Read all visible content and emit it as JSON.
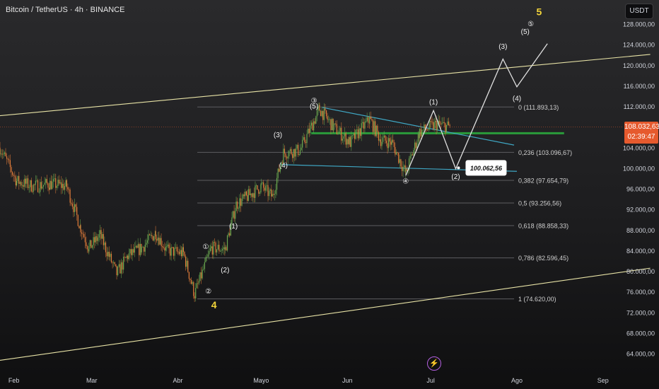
{
  "header": {
    "symbol_title": "Bitcoin / TetherUS · 4h · BINANCE",
    "currency_button": "USDT"
  },
  "price_tag": {
    "price": "108.032,63",
    "countdown": "02:39:47"
  },
  "colors": {
    "background": "#1e1e1f",
    "fib_line": "#5d5d60",
    "channel": "#e8e3a6",
    "triangle": "#3fa7c4",
    "support": "#2a9b3a",
    "price_tag": "#e65a2e",
    "wave_yellow": "#f2d43a",
    "path": "#e0e0e0",
    "candle_up": "#6aa84f",
    "candle_down": "#e07b39"
  },
  "chart_data": {
    "type": "candlestick",
    "title": "Bitcoin / TetherUS · 4h · BINANCE",
    "x_tick_labels": [
      "Feb",
      "Mar",
      "Abr",
      "Mayo",
      "Jun",
      "Jul",
      "Ago",
      "Sep"
    ],
    "y_tick_labels": [
      "128.000,00",
      "124.000,00",
      "120.000,00",
      "116.000,00",
      "112.000,00",
      "104.000,00",
      "100.000,00",
      "96.000,00",
      "92.000,00",
      "88.000,00",
      "84.000,00",
      "80.000,00",
      "76.000,00",
      "72.000,00",
      "68.000,00",
      "64.000,00"
    ],
    "y_tick_values": [
      128000,
      124000,
      120000,
      116000,
      112000,
      104000,
      100000,
      96000,
      92000,
      88000,
      84000,
      80000,
      76000,
      72000,
      68000,
      64000
    ],
    "ylim": [
      62000,
      131000
    ],
    "last_price": 108032.63,
    "price_path": [
      [
        "2025-01-27",
        104000
      ],
      [
        "2025-02-02",
        97500
      ],
      [
        "2025-02-08",
        96500
      ],
      [
        "2025-02-14",
        97000
      ],
      [
        "2025-02-20",
        96500
      ],
      [
        "2025-02-25",
        88500
      ],
      [
        "2025-02-28",
        84500
      ],
      [
        "2025-03-04",
        87000
      ],
      [
        "2025-03-10",
        79500
      ],
      [
        "2025-03-14",
        83000
      ],
      [
        "2025-03-19",
        84500
      ],
      [
        "2025-03-24",
        87500
      ],
      [
        "2025-03-28",
        84000
      ],
      [
        "2025-04-03",
        83500
      ],
      [
        "2025-04-07",
        75500
      ],
      [
        "2025-04-09",
        78500
      ],
      [
        "2025-04-13",
        84500
      ],
      [
        "2025-04-18",
        84300
      ],
      [
        "2025-04-22",
        93000
      ],
      [
        "2025-04-26",
        94500
      ],
      [
        "2025-05-01",
        96500
      ],
      [
        "2025-05-05",
        94500
      ],
      [
        "2025-05-09",
        103000
      ],
      [
        "2025-05-15",
        103500
      ],
      [
        "2025-05-22",
        111500
      ],
      [
        "2025-05-27",
        108000
      ],
      [
        "2025-06-02",
        105000
      ],
      [
        "2025-06-09",
        109500
      ],
      [
        "2025-06-13",
        105500
      ],
      [
        "2025-06-17",
        105000
      ],
      [
        "2025-06-22",
        99000
      ],
      [
        "2025-06-27",
        107000
      ],
      [
        "2025-07-03",
        108500
      ],
      [
        "2025-07-08",
        108032
      ]
    ],
    "fibonacci_levels": [
      {
        "ratio": 0,
        "price": 111893.13,
        "label": "0 (111.893,13)"
      },
      {
        "ratio": 0.236,
        "price": 103096.67,
        "label": "0,236 (103.096,67)"
      },
      {
        "ratio": 0.382,
        "price": 97654.79,
        "label": "0,382 (97.654,79)"
      },
      {
        "ratio": 0.5,
        "price": 93256.56,
        "label": "0,5 (93.256,56)"
      },
      {
        "ratio": 0.618,
        "price": 88858.33,
        "label": "0,618 (88.858,33)"
      },
      {
        "ratio": 0.786,
        "price": 82596.45,
        "label": "0,786 (82.596,45)"
      },
      {
        "ratio": 1,
        "price": 74620.0,
        "label": "1 (74.620,00)"
      }
    ],
    "target_callout": {
      "price": 100062.56,
      "label": "100.062,56"
    },
    "support_zone_price": 106800,
    "channel": {
      "upper": [
        [
          "2025-01-27",
          110200
        ],
        [
          "2025-09-18",
          122100
        ]
      ],
      "lower": [
        [
          "2025-01-27",
          62700
        ],
        [
          "2025-09-18",
          80600
        ]
      ]
    },
    "triangle": {
      "upper": [
        [
          "2025-05-23",
          111800
        ],
        [
          "2025-07-31",
          104500
        ]
      ],
      "lower": [
        [
          "2025-05-08",
          100700
        ],
        [
          "2025-08-01",
          99400
        ]
      ]
    },
    "projection_path": [
      [
        "2025-06-22",
        98600
      ],
      [
        "2025-07-02",
        111200
      ],
      [
        "2025-07-10",
        99900
      ],
      [
        "2025-07-27",
        121200
      ],
      [
        "2025-08-01",
        115800
      ],
      [
        "2025-08-12",
        124200
      ]
    ],
    "wave_labels": [
      {
        "text": "①",
        "date": "2025-04-11",
        "price": 84300
      },
      {
        "text": "②",
        "date": "2025-04-12",
        "price": 75700
      },
      {
        "text": "(1)",
        "date": "2025-04-21",
        "price": 88300
      },
      {
        "text": "(2)",
        "date": "2025-04-18",
        "price": 79800
      },
      {
        "text": "(3)",
        "date": "2025-05-07",
        "price": 106000
      },
      {
        "text": "(4)",
        "date": "2025-05-09",
        "price": 100100
      },
      {
        "text": "③",
        "date": "2025-05-20",
        "price": 112700
      },
      {
        "text": "(5)",
        "date": "2025-05-20",
        "price": 111600
      },
      {
        "text": "④",
        "date": "2025-06-22",
        "price": 97000
      },
      {
        "text": "(1)",
        "date": "2025-07-02",
        "price": 112400
      },
      {
        "text": "(2)",
        "date": "2025-07-10",
        "price": 97900
      },
      {
        "text": "(3)",
        "date": "2025-07-27",
        "price": 123200
      },
      {
        "text": "(4)",
        "date": "2025-08-01",
        "price": 113100
      },
      {
        "text": "(5)",
        "date": "2025-08-04",
        "price": 126100
      },
      {
        "text": "⑤",
        "date": "2025-08-06",
        "price": 127600
      }
    ],
    "big_wave_labels": [
      {
        "text": "4",
        "date": "2025-04-14",
        "price": 72800
      },
      {
        "text": "5",
        "date": "2025-08-09",
        "price": 129700
      }
    ]
  }
}
